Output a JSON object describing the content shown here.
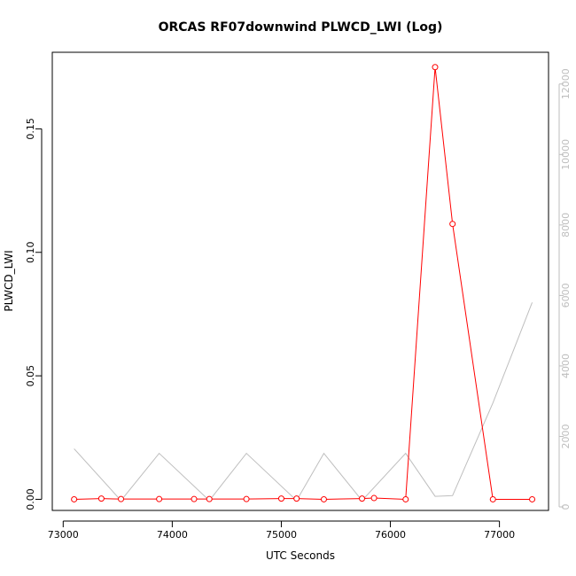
{
  "chart_data": {
    "type": "line",
    "title": "ORCAS RF07downwind PLWCD_LWI (Log)",
    "xlabel": "UTC Seconds",
    "ylabel": "PLWCD_LWI",
    "xlim": [
      72900,
      77450
    ],
    "ylim": [
      -0.0045,
      0.181
    ],
    "y2lim": [
      -100,
      12900
    ],
    "x_ticks": [
      73000,
      74000,
      75000,
      76000,
      77000
    ],
    "y_ticks": [
      0.0,
      0.05,
      0.1,
      0.15
    ],
    "y_tick_labels": [
      "0.00",
      "0.05",
      "0.10",
      "0.15"
    ],
    "y2_ticks": [
      0,
      2000,
      4000,
      6000,
      8000,
      10000,
      12000
    ],
    "grid": false,
    "legend": "none",
    "series": [
      {
        "axis": "left",
        "color": "#ff0000",
        "markers": "open-circle",
        "x": [
          73100,
          73350,
          73530,
          73880,
          74200,
          74340,
          74680,
          75000,
          75140,
          75390,
          75740,
          75850,
          76140,
          76410,
          76570,
          76940,
          77300
        ],
        "y": [
          0.0,
          0.0003,
          0.0001,
          0.0001,
          0.0001,
          0.0001,
          0.0001,
          0.0003,
          0.0003,
          0.0,
          0.0003,
          0.0005,
          0.0,
          0.175,
          0.1115,
          0.0,
          0.0
        ]
      },
      {
        "axis": "right",
        "color": "#bebebe",
        "markers": "none",
        "x": [
          73100,
          73530,
          73880,
          74340,
          74680,
          75140,
          75390,
          75740,
          76140,
          76410,
          76570,
          76940,
          77300
        ],
        "y": [
          1650,
          180,
          1520,
          180,
          1520,
          180,
          1520,
          180,
          1520,
          300,
          320,
          2950,
          5800
        ]
      }
    ]
  }
}
